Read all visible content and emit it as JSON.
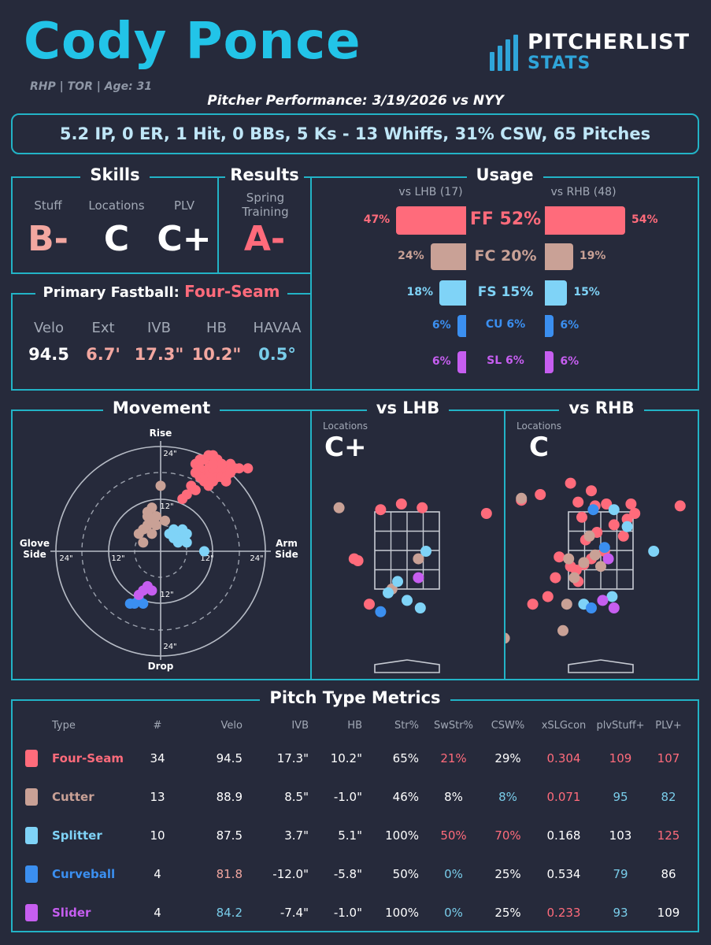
{
  "header": {
    "name": "Cody Ponce",
    "meta": "RHP | TOR | Age: 31",
    "performance": "Pitcher Performance: 3/19/2026 vs NYY",
    "brand_top": "PITCHERLIST",
    "brand_bottom": "STATS",
    "summary": "5.2 IP, 0 ER, 1 Hit, 0 BBs, 5 Ks - 13 Whiffs, 31% CSW, 65 Pitches"
  },
  "skills": {
    "title": "Skills",
    "labels": [
      "Stuff",
      "Locations",
      "PLV"
    ],
    "grades": [
      "B-",
      "C",
      "C+"
    ]
  },
  "results": {
    "title": "Results",
    "label": "Spring Training",
    "grade": "A-"
  },
  "fastball": {
    "title_prefix": "Primary Fastball:",
    "pitch": "Four-Seam",
    "labels": [
      "Velo",
      "Ext",
      "IVB",
      "HB",
      "HAVAA"
    ],
    "values": [
      "94.5",
      "6.7'",
      "17.3\"",
      "10.2\"",
      "0.5°"
    ]
  },
  "usage": {
    "title": "Usage",
    "lhb_label": "vs LHB (17)",
    "rhb_label": "vs RHB (48)",
    "rows": [
      {
        "name": "FF 52%",
        "lhb": "47%",
        "rhb": "54%",
        "lhb_val": 47,
        "rhb_val": 54,
        "color": "#ff6b7b"
      },
      {
        "name": "FC 20%",
        "lhb": "24%",
        "rhb": "19%",
        "lhb_val": 24,
        "rhb_val": 19,
        "color": "#c9a196"
      },
      {
        "name": "FS 15%",
        "lhb": "18%",
        "rhb": "15%",
        "lhb_val": 18,
        "rhb_val": 15,
        "color": "#7fd3f7"
      },
      {
        "name": "CU 6%",
        "lhb": "6%",
        "rhb": "6%",
        "lhb_val": 6,
        "rhb_val": 6,
        "color": "#3b8ff0"
      },
      {
        "name": "SL 6%",
        "lhb": "6%",
        "rhb": "6%",
        "lhb_val": 6,
        "rhb_val": 6,
        "color": "#c65ef0"
      }
    ]
  },
  "movement": {
    "title": "Movement",
    "top": "Rise",
    "bottom": "Drop",
    "left": "Glove Side",
    "right": "Arm Side",
    "rings": [
      "24\"",
      "12\""
    ]
  },
  "locations": {
    "lhb_title": "vs LHB",
    "rhb_title": "vs RHB",
    "label": "Locations",
    "lhb_grade": "C+",
    "rhb_grade": "C"
  },
  "metrics": {
    "title": "Pitch Type Metrics",
    "headers": [
      "Type",
      "#",
      "Velo",
      "IVB",
      "HB",
      "Str%",
      "SwStr%",
      "CSW%",
      "xSLGcon",
      "plvStuff+",
      "PLV+"
    ],
    "rows": [
      {
        "color": "#ff6b7b",
        "cells": [
          "Four-Seam",
          "34",
          "94.5",
          "17.3\"",
          "10.2\"",
          "65%",
          "21%",
          "29%",
          "0.304",
          "109",
          "107"
        ]
      },
      {
        "color": "#c9a196",
        "cells": [
          "Cutter",
          "13",
          "88.9",
          "8.5\"",
          "-1.0\"",
          "46%",
          "8%",
          "8%",
          "0.071",
          "95",
          "82"
        ]
      },
      {
        "color": "#7fd3f7",
        "cells": [
          "Splitter",
          "10",
          "87.5",
          "3.7\"",
          "5.1\"",
          "100%",
          "50%",
          "70%",
          "0.168",
          "103",
          "125"
        ]
      },
      {
        "color": "#3b8ff0",
        "cells": [
          "Curveball",
          "4",
          "81.8",
          "-12.0\"",
          "-5.8\"",
          "50%",
          "0%",
          "25%",
          "0.534",
          "79",
          "86"
        ]
      },
      {
        "color": "#c65ef0",
        "cells": [
          "Slider",
          "4",
          "84.2",
          "-7.4\"",
          "-1.0\"",
          "100%",
          "0%",
          "25%",
          "0.233",
          "93",
          "109"
        ]
      }
    ]
  }
}
